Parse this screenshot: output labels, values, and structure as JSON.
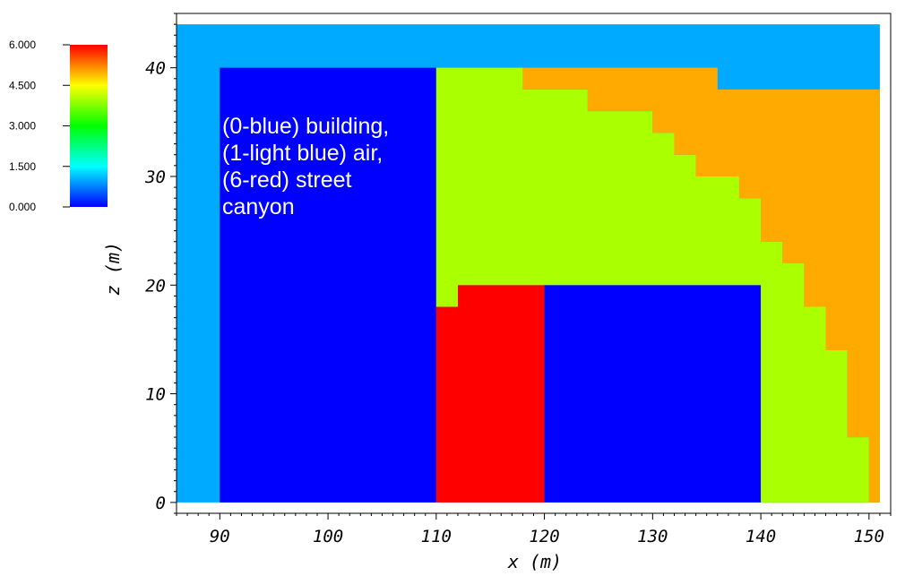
{
  "chart_data": {
    "type": "heatmap",
    "xlabel": "x (m)",
    "ylabel": "z (m)",
    "xlim": [
      86,
      152
    ],
    "ylim": [
      -1,
      45
    ],
    "x_ticks": [
      90,
      100,
      110,
      120,
      130,
      140,
      150
    ],
    "y_ticks": [
      0,
      10,
      20,
      30,
      40
    ],
    "x_minor_step": 1,
    "y_minor_step": 1,
    "domain": {
      "x": [
        86,
        151
      ],
      "z": [
        0,
        44
      ]
    },
    "background_value": 1,
    "colors": {
      "0": "#0000ff",
      "1": "#00aaff",
      "4": "#aaff00",
      "5": "#ffaa00",
      "6": "#ff0000"
    },
    "regions": [
      {
        "value": 0,
        "polygon": [
          [
            90,
            0
          ],
          [
            110,
            0
          ],
          [
            110,
            40
          ],
          [
            90,
            40
          ]
        ]
      },
      {
        "value": 0,
        "polygon": [
          [
            120,
            0
          ],
          [
            140,
            0
          ],
          [
            140,
            20
          ],
          [
            120,
            20
          ]
        ]
      },
      {
        "value": 6,
        "polygon": [
          [
            110,
            0
          ],
          [
            120,
            0
          ],
          [
            120,
            20
          ],
          [
            112,
            20
          ],
          [
            112,
            18
          ],
          [
            110,
            18
          ]
        ]
      },
      {
        "value": 4,
        "polygon": [
          [
            110,
            18
          ],
          [
            112,
            18
          ],
          [
            112,
            20
          ],
          [
            140,
            20
          ],
          [
            140,
            0
          ],
          [
            150,
            0
          ],
          [
            150,
            6
          ],
          [
            148,
            6
          ],
          [
            148,
            14
          ],
          [
            146,
            14
          ],
          [
            146,
            18
          ],
          [
            144,
            18
          ],
          [
            144,
            22
          ],
          [
            142,
            22
          ],
          [
            142,
            24
          ],
          [
            140,
            24
          ],
          [
            140,
            28
          ],
          [
            138,
            28
          ],
          [
            138,
            30
          ],
          [
            134,
            30
          ],
          [
            134,
            32
          ],
          [
            132,
            32
          ],
          [
            132,
            34
          ],
          [
            130,
            34
          ],
          [
            130,
            36
          ],
          [
            124,
            36
          ],
          [
            124,
            38
          ],
          [
            118,
            38
          ],
          [
            118,
            40
          ],
          [
            110,
            40
          ]
        ]
      },
      {
        "value": 5,
        "polygon": [
          [
            118,
            40
          ],
          [
            136,
            40
          ],
          [
            136,
            38
          ],
          [
            151,
            38
          ],
          [
            151,
            0
          ],
          [
            150,
            0
          ],
          [
            150,
            6
          ],
          [
            148,
            6
          ],
          [
            148,
            14
          ],
          [
            146,
            14
          ],
          [
            146,
            18
          ],
          [
            144,
            18
          ],
          [
            144,
            22
          ],
          [
            142,
            22
          ],
          [
            142,
            24
          ],
          [
            140,
            24
          ],
          [
            140,
            28
          ],
          [
            138,
            28
          ],
          [
            138,
            30
          ],
          [
            134,
            30
          ],
          [
            134,
            32
          ],
          [
            132,
            32
          ],
          [
            132,
            34
          ],
          [
            130,
            34
          ],
          [
            130,
            36
          ],
          [
            124,
            36
          ],
          [
            124,
            38
          ],
          [
            118,
            38
          ]
        ]
      }
    ],
    "colorbar": {
      "range": [
        0,
        6
      ],
      "tick_labels": [
        "6.000",
        "4.500",
        "3.000",
        "1.500",
        "0.000"
      ],
      "tick_values": [
        6,
        4.5,
        3,
        1.5,
        0
      ],
      "stops": [
        "#0000ff",
        "#00ffff",
        "#00ff00",
        "#ffff00",
        "#ff0000"
      ]
    },
    "annotation": [
      "(0-blue) building,",
      "(1-light blue) air,",
      "(6-red) street",
      "canyon"
    ]
  }
}
